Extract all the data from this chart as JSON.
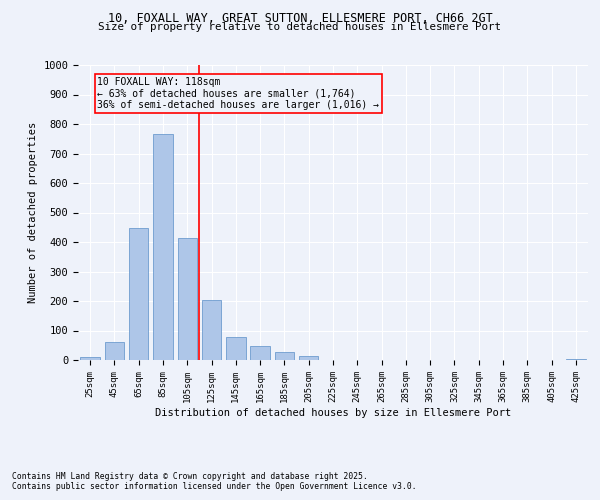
{
  "title1": "10, FOXALL WAY, GREAT SUTTON, ELLESMERE PORT, CH66 2GT",
  "title2": "Size of property relative to detached houses in Ellesmere Port",
  "xlabel": "Distribution of detached houses by size in Ellesmere Port",
  "ylabel": "Number of detached properties",
  "categories": [
    "25sqm",
    "45sqm",
    "65sqm",
    "85sqm",
    "105sqm",
    "125sqm",
    "145sqm",
    "165sqm",
    "185sqm",
    "205sqm",
    "225sqm",
    "245sqm",
    "265sqm",
    "285sqm",
    "305sqm",
    "325sqm",
    "345sqm",
    "365sqm",
    "385sqm",
    "405sqm",
    "425sqm"
  ],
  "values": [
    10,
    62,
    447,
    765,
    415,
    205,
    77,
    46,
    27,
    14,
    0,
    0,
    0,
    0,
    0,
    0,
    0,
    0,
    0,
    0,
    4
  ],
  "bar_color": "#aec6e8",
  "bar_edge_color": "#5b8fc9",
  "vline_x": 4.5,
  "annotation_text": "10 FOXALL WAY: 118sqm\n← 63% of detached houses are smaller (1,764)\n36% of semi-detached houses are larger (1,016) →",
  "bg_color": "#eef2fa",
  "grid_color": "#ffffff",
  "footnote1": "Contains HM Land Registry data © Crown copyright and database right 2025.",
  "footnote2": "Contains public sector information licensed under the Open Government Licence v3.0.",
  "ylim": [
    0,
    1000
  ],
  "yticks": [
    0,
    100,
    200,
    300,
    400,
    500,
    600,
    700,
    800,
    900,
    1000
  ]
}
